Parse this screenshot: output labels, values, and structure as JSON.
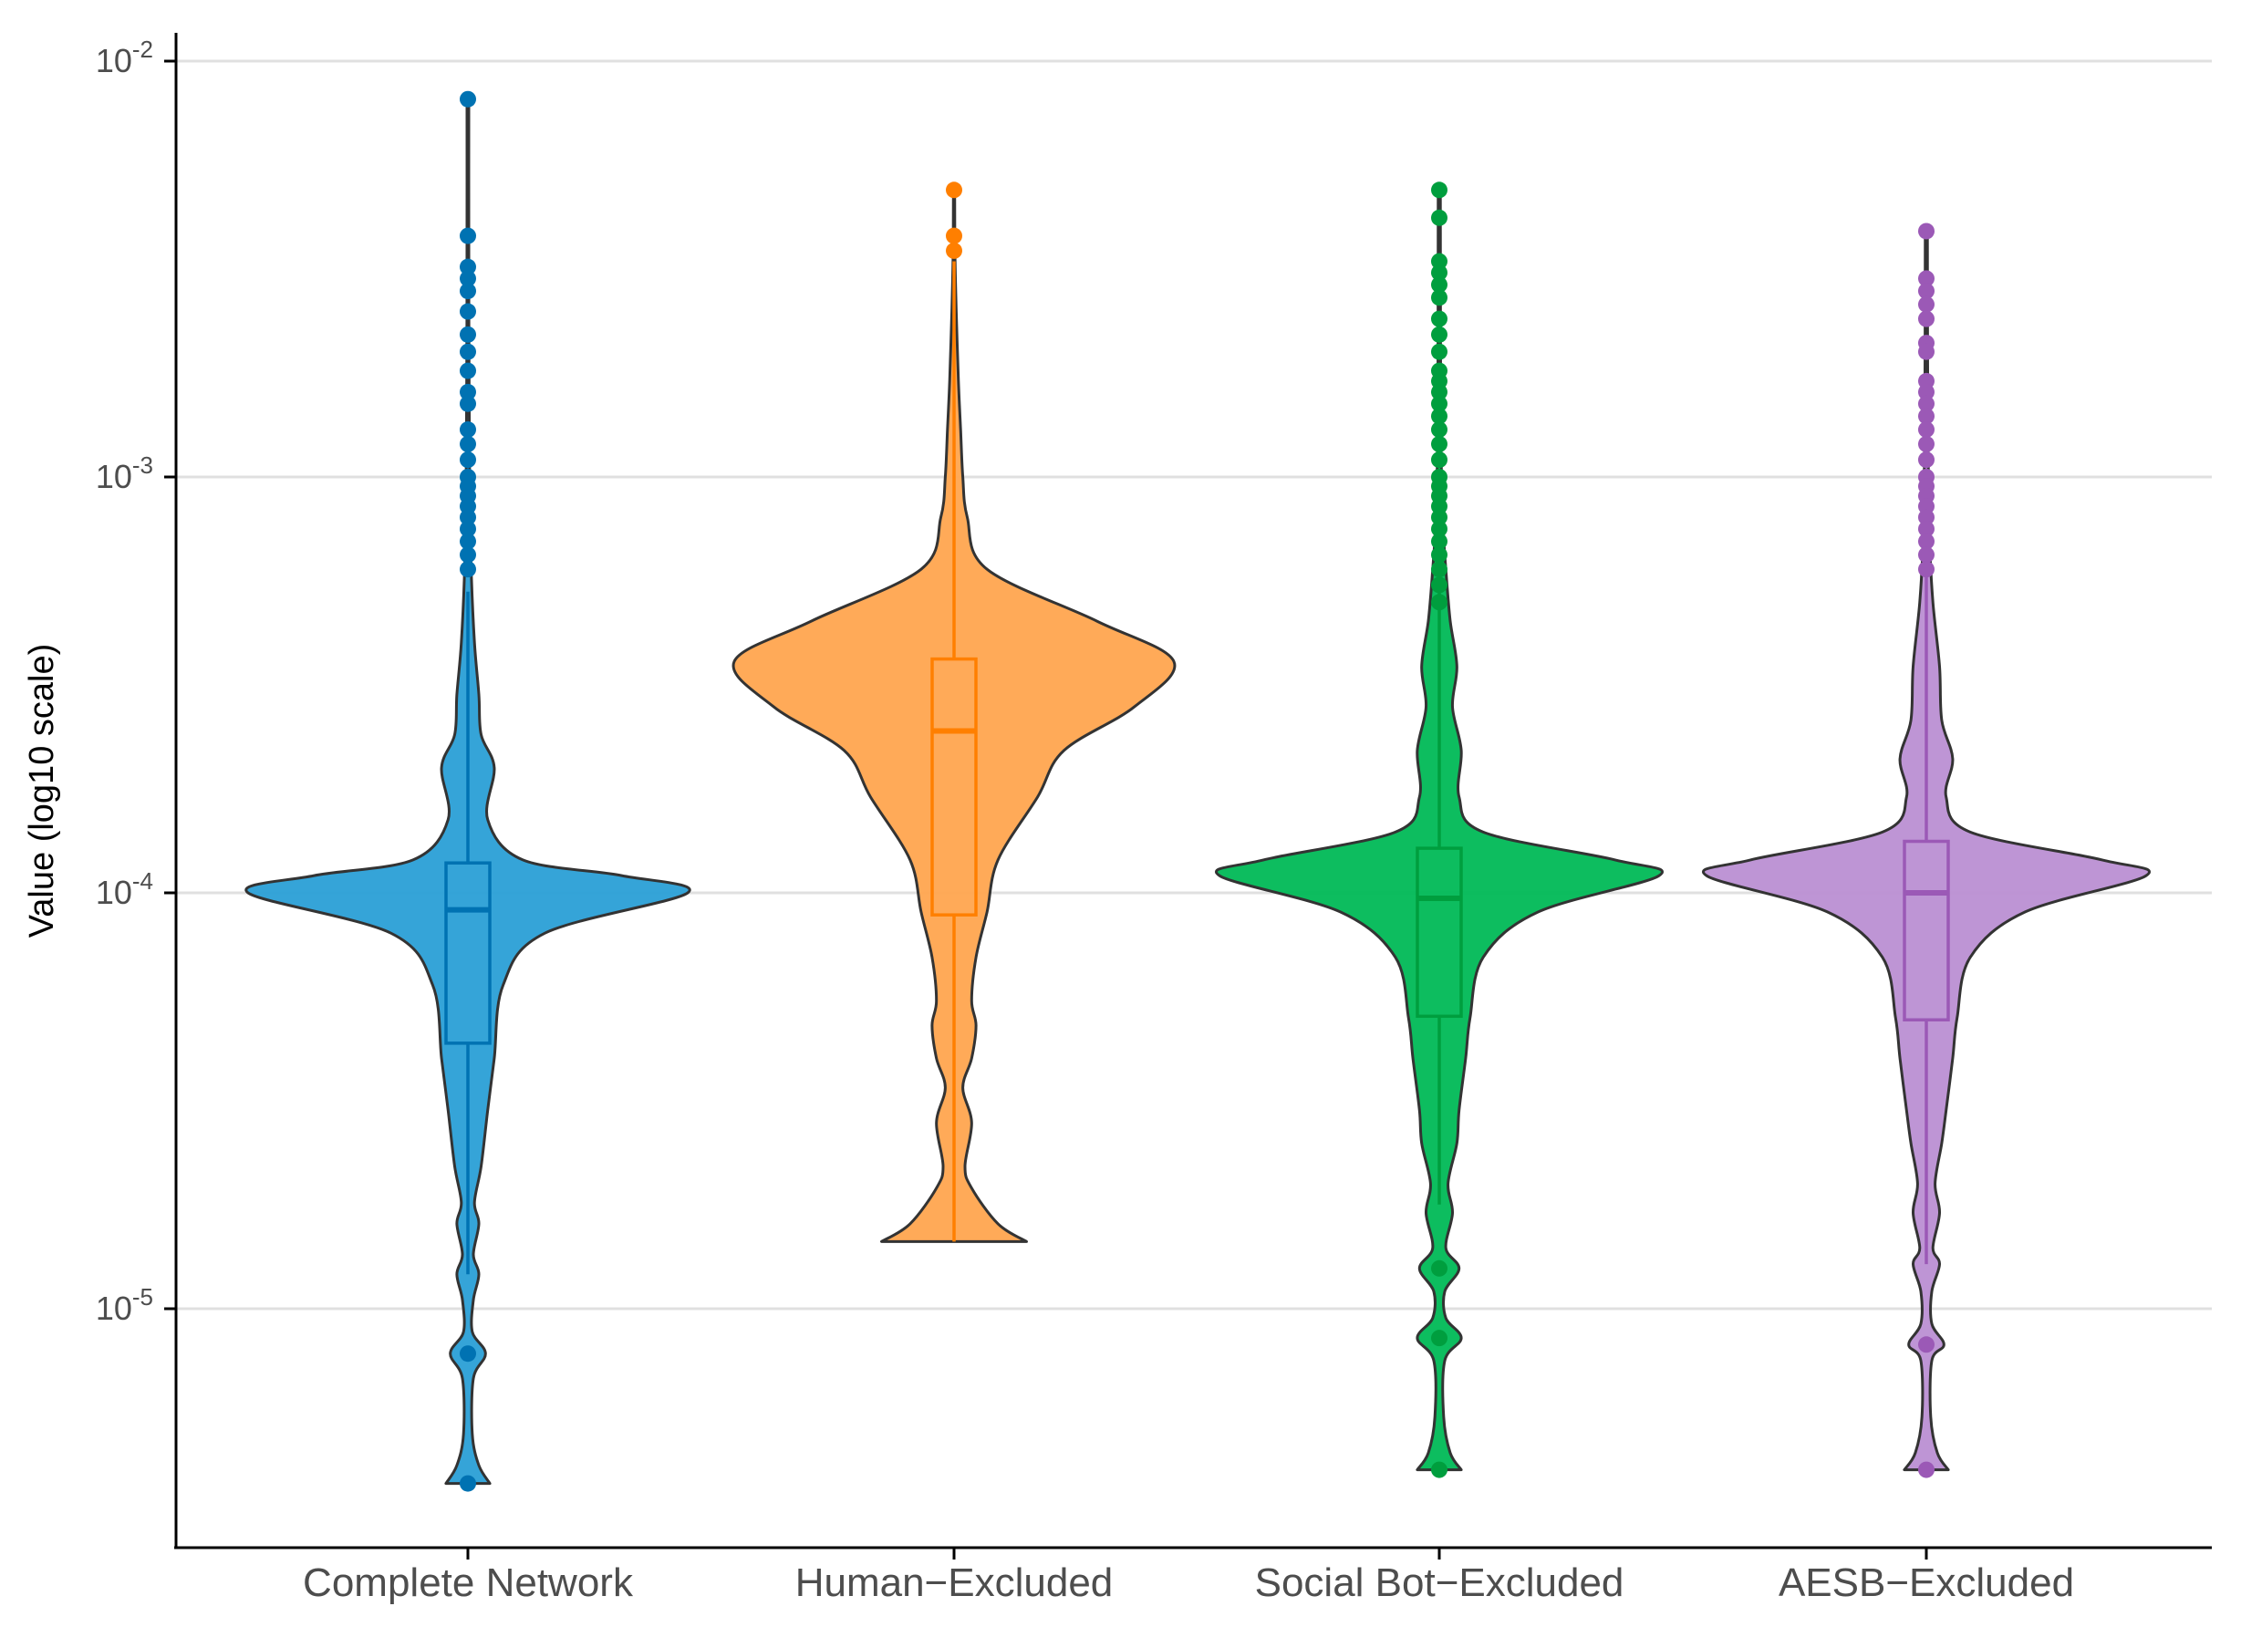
{
  "chart_data": {
    "type": "violin",
    "title": "",
    "xlabel": "",
    "ylabel": "Value (log10 scale)",
    "y_scale": "log10",
    "ylim": [
      3.1e-06,
      0.012
    ],
    "yticks": [
      {
        "value": 1e-05,
        "exponent": "-5"
      },
      {
        "value": 0.0001,
        "exponent": "-4"
      },
      {
        "value": 0.001,
        "exponent": "-3"
      },
      {
        "value": 0.01,
        "exponent": "-2"
      }
    ],
    "tick_base": "10",
    "grid": "horizontal-major",
    "legend": "none",
    "categories": [
      "Complete Network",
      "Human−Excluded",
      "Social Bot−Excluded",
      "AESB−Excluded"
    ],
    "series": [
      {
        "color": "#0072B2",
        "fill": "#2a9fd6",
        "box": {
          "q1": 4.35e-05,
          "median": 9.1e-05,
          "q3": 0.000118,
          "whisker_low": 1.21e-05,
          "whisker_high": 0.00053
        },
        "density": [
          [
            3.8e-06,
            0.1
          ],
          [
            4.2e-06,
            0.05
          ],
          [
            5e-06,
            0.02
          ],
          [
            6.8e-06,
            0.025
          ],
          [
            7.8e-06,
            0.08
          ],
          [
            8.8e-06,
            0.02
          ],
          [
            1.05e-05,
            0.025
          ],
          [
            1.21e-05,
            0.05
          ],
          [
            1.35e-05,
            0.025
          ],
          [
            1.6e-05,
            0.05
          ],
          [
            1.8e-05,
            0.03
          ],
          [
            2.2e-05,
            0.06
          ],
          [
            3e-05,
            0.09
          ],
          [
            4e-05,
            0.12
          ],
          [
            6e-05,
            0.16
          ],
          [
            8e-05,
            0.35
          ],
          [
            0.0001,
            1.0
          ],
          [
            0.00011,
            0.7
          ],
          [
            0.00012,
            0.25
          ],
          [
            0.00015,
            0.09
          ],
          [
            0.0002,
            0.12
          ],
          [
            0.00024,
            0.06
          ],
          [
            0.0003,
            0.05
          ],
          [
            0.0004,
            0.03
          ],
          [
            0.0006,
            0.015
          ],
          [
            0.001,
            0.008
          ],
          [
            0.002,
            0.005
          ],
          [
            0.004,
            0.004
          ],
          [
            0.0081,
            0.004
          ]
        ],
        "outliers": [
          0.0081,
          0.0038,
          0.0032,
          0.003,
          0.0028,
          0.0025,
          0.0022,
          0.002,
          0.0018,
          0.0016,
          0.0015,
          0.0013,
          0.0012,
          0.0011,
          0.001,
          0.00095,
          0.0009,
          0.00085,
          0.0008,
          0.00075,
          0.0007,
          0.00065,
          0.0006,
          7.8e-06,
          3.8e-06
        ]
      },
      {
        "color": "#FF7F00",
        "fill": "#ffa54f",
        "box": {
          "q1": 8.85e-05,
          "median": 0.000245,
          "q3": 0.000365,
          "whisker_low": 1.45e-05,
          "whisker_high": 0.0033
        },
        "density": [
          [
            1.45e-05,
            0.33
          ],
          [
            1.6e-05,
            0.2
          ],
          [
            1.95e-05,
            0.08
          ],
          [
            2.2e-05,
            0.05
          ],
          [
            2.8e-05,
            0.08
          ],
          [
            3.4e-05,
            0.04
          ],
          [
            4e-05,
            0.08
          ],
          [
            4.8e-05,
            0.1
          ],
          [
            5.5e-05,
            0.08
          ],
          [
            7e-05,
            0.1
          ],
          [
            9e-05,
            0.15
          ],
          [
            0.00012,
            0.2
          ],
          [
            0.00017,
            0.38
          ],
          [
            0.00022,
            0.5
          ],
          [
            0.00028,
            0.82
          ],
          [
            0.00036,
            1.0
          ],
          [
            0.00045,
            0.65
          ],
          [
            0.0006,
            0.15
          ],
          [
            0.0008,
            0.06
          ],
          [
            0.001,
            0.04
          ],
          [
            0.0013,
            0.03
          ],
          [
            0.0017,
            0.02
          ],
          [
            0.0025,
            0.01
          ],
          [
            0.0035,
            0.004
          ],
          [
            0.0049,
            0.003
          ]
        ],
        "outliers": [
          0.0049,
          0.0038,
          0.0035
        ]
      },
      {
        "color": "#009E3E",
        "fill": "#00b956",
        "box": {
          "q1": 5.05e-05,
          "median": 9.7e-05,
          "q3": 0.000128,
          "whisker_low": 1.78e-05,
          "whisker_high": 0.00062
        },
        "density": [
          [
            4.1e-06,
            0.1
          ],
          [
            4.5e-06,
            0.05
          ],
          [
            5.5e-06,
            0.02
          ],
          [
            7.5e-06,
            0.025
          ],
          [
            8.5e-06,
            0.1
          ],
          [
            9.5e-06,
            0.03
          ],
          [
            1.1e-05,
            0.025
          ],
          [
            1.25e-05,
            0.09
          ],
          [
            1.4e-05,
            0.03
          ],
          [
            1.7e-05,
            0.06
          ],
          [
            2e-05,
            0.04
          ],
          [
            2.5e-05,
            0.08
          ],
          [
            3e-05,
            0.09
          ],
          [
            4e-05,
            0.12
          ],
          [
            5e-05,
            0.14
          ],
          [
            7e-05,
            0.2
          ],
          [
            9e-05,
            0.45
          ],
          [
            0.00011,
            1.0
          ],
          [
            0.00012,
            0.8
          ],
          [
            0.00014,
            0.2
          ],
          [
            0.00017,
            0.09
          ],
          [
            0.00022,
            0.1
          ],
          [
            0.00028,
            0.06
          ],
          [
            0.00035,
            0.08
          ],
          [
            0.00045,
            0.05
          ],
          [
            0.0006,
            0.03
          ],
          [
            0.0008,
            0.015
          ],
          [
            0.0012,
            0.008
          ],
          [
            0.002,
            0.006
          ],
          [
            0.0049,
            0.005
          ]
        ],
        "outliers": [
          0.0049,
          0.0042,
          0.0033,
          0.0031,
          0.0029,
          0.0027,
          0.0024,
          0.0022,
          0.002,
          0.0018,
          0.0017,
          0.0016,
          0.0015,
          0.0014,
          0.0013,
          0.0012,
          0.0011,
          0.001,
          0.00095,
          0.0009,
          0.00085,
          0.0008,
          0.00075,
          0.0007,
          0.00065,
          0.0006,
          0.00055,
          0.0005,
          1.25e-05,
          8.5e-06,
          4.1e-06
        ]
      },
      {
        "color": "#9B59B6",
        "fill": "#bb8fd3",
        "box": {
          "q1": 4.95e-05,
          "median": 0.0001,
          "q3": 0.000133,
          "whisker_low": 1.28e-05,
          "whisker_high": 0.00061
        },
        "density": [
          [
            4.1e-06,
            0.1
          ],
          [
            4.5e-06,
            0.05
          ],
          [
            5.5e-06,
            0.02
          ],
          [
            7.5e-06,
            0.025
          ],
          [
            8.2e-06,
            0.08
          ],
          [
            9.2e-06,
            0.025
          ],
          [
            1.1e-05,
            0.025
          ],
          [
            1.28e-05,
            0.06
          ],
          [
            1.4e-05,
            0.03
          ],
          [
            1.7e-05,
            0.06
          ],
          [
            2e-05,
            0.04
          ],
          [
            2.5e-05,
            0.07
          ],
          [
            3e-05,
            0.09
          ],
          [
            4e-05,
            0.12
          ],
          [
            5e-05,
            0.14
          ],
          [
            7e-05,
            0.2
          ],
          [
            9e-05,
            0.45
          ],
          [
            0.00011,
            1.0
          ],
          [
            0.00012,
            0.8
          ],
          [
            0.00014,
            0.2
          ],
          [
            0.00017,
            0.09
          ],
          [
            0.00021,
            0.12
          ],
          [
            0.00026,
            0.07
          ],
          [
            0.00035,
            0.06
          ],
          [
            0.0005,
            0.03
          ],
          [
            0.0007,
            0.015
          ],
          [
            0.0012,
            0.008
          ],
          [
            0.002,
            0.006
          ],
          [
            0.0039,
            0.005
          ]
        ],
        "outliers": [
          0.0039,
          0.003,
          0.0028,
          0.0026,
          0.0024,
          0.0021,
          0.002,
          0.0017,
          0.0016,
          0.0015,
          0.0014,
          0.0013,
          0.0012,
          0.0011,
          0.001,
          0.00095,
          0.0009,
          0.00085,
          0.0008,
          0.00075,
          0.0007,
          0.00065,
          0.0006,
          8.2e-06,
          4.1e-06
        ]
      }
    ]
  }
}
